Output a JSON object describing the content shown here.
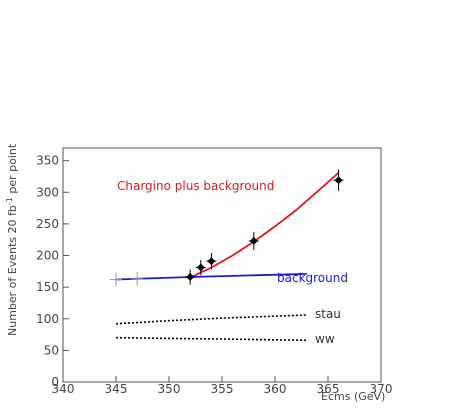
{
  "chart_data": {
    "type": "scatter",
    "xlabel": "Ecms (GeV)",
    "ylabel_parts": [
      "Number of Events  20 fb",
      "-1",
      " per point"
    ],
    "xlim": [
      340,
      370
    ],
    "ylim": [
      0,
      370
    ],
    "x_ticks": [
      340,
      345,
      350,
      355,
      360,
      365,
      370
    ],
    "y_ticks": [
      0,
      50,
      100,
      150,
      200,
      250,
      300,
      350
    ],
    "grid": false,
    "data_points": [
      {
        "x": 352,
        "y": 166,
        "err": 12
      },
      {
        "x": 353,
        "y": 181,
        "err": 12
      },
      {
        "x": 354,
        "y": 191,
        "err": 13
      },
      {
        "x": 358,
        "y": 223,
        "err": 14
      },
      {
        "x": 366,
        "y": 319,
        "err": 17
      }
    ],
    "background_points": [
      {
        "x": 345,
        "y": 162,
        "err": 11
      },
      {
        "x": 347,
        "y": 163,
        "err": 11
      }
    ],
    "series": [
      {
        "name": "Chargino plus background",
        "color": "#e8141c",
        "style": "solid",
        "x": [
          352,
          354,
          356,
          358,
          360,
          362,
          364,
          366
        ],
        "y": [
          165,
          181,
          200,
          222,
          246,
          272,
          301,
          331
        ]
      },
      {
        "name": "background",
        "color": "#1a1ad6",
        "style": "solid",
        "x": [
          345,
          352,
          363
        ],
        "y": [
          162,
          166,
          171
        ]
      },
      {
        "name": "stau",
        "color": "#000000",
        "style": "dotted",
        "x": [
          345,
          350,
          355,
          363
        ],
        "y": [
          92,
          97,
          101,
          106
        ]
      },
      {
        "name": "WW",
        "color": "#000000",
        "style": "dotted",
        "x": [
          345,
          350,
          355,
          363
        ],
        "y": [
          70,
          69,
          68,
          66
        ]
      }
    ],
    "labels": {
      "signal": "Chargino plus background",
      "background": "background",
      "stau": "stau",
      "ww": "ww"
    }
  }
}
